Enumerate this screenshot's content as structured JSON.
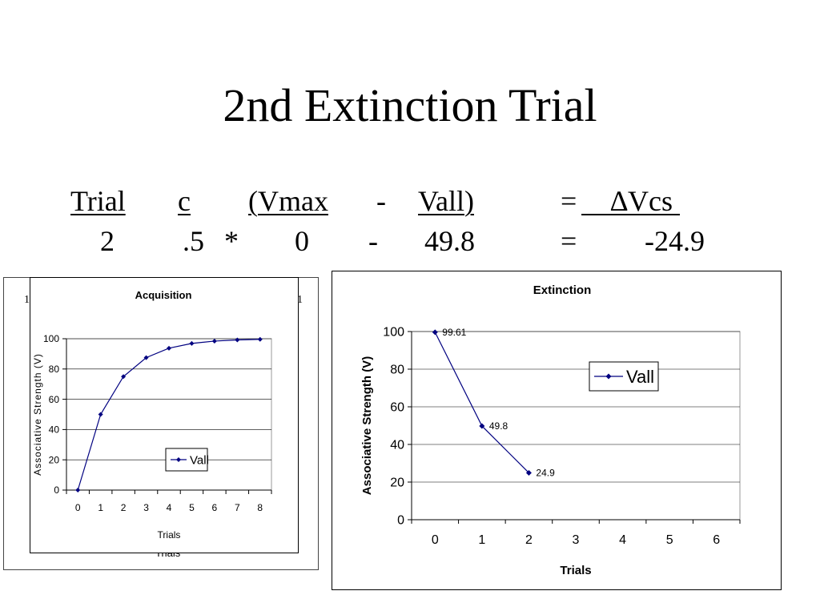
{
  "slide": {
    "title": "2nd Extinction Trial",
    "equation": {
      "headers": [
        "Trial",
        "c",
        "(Vmax",
        "-",
        "Vall)",
        "=",
        "∆Vcs"
      ],
      "values": [
        "2",
        ".5",
        "*",
        "0",
        "-",
        "49.8",
        "=",
        "-24.9"
      ]
    }
  },
  "background_chart": {
    "stub_left": "1",
    "stub_right": "1",
    "stub_bottom": "Trials"
  },
  "chart_data": [
    {
      "type": "line",
      "title": "Acquisition",
      "xlabel": "Trials",
      "ylabel": "Associative Strength (V)",
      "x": [
        0,
        1,
        2,
        3,
        4,
        5,
        6,
        7,
        8
      ],
      "series": [
        {
          "name": "Vall",
          "values": [
            0,
            50,
            75,
            87.5,
            93.75,
            96.88,
            98.44,
            99.22,
            99.61
          ]
        }
      ],
      "ylim": [
        0,
        100
      ],
      "yticks": [
        0,
        20,
        40,
        60,
        80,
        100
      ],
      "grid": "horizontal",
      "legend": "lower-right",
      "color": "#000080"
    },
    {
      "type": "line",
      "title": "Extinction",
      "xlabel": "Trials",
      "ylabel": "Associative Strength (V)",
      "x": [
        0,
        1,
        2
      ],
      "xticks": [
        0,
        1,
        2,
        3,
        4,
        5,
        6
      ],
      "series": [
        {
          "name": "Vall",
          "values": [
            99.61,
            49.8,
            24.9
          ]
        }
      ],
      "data_labels": [
        "99.61",
        "49.8",
        "24.9"
      ],
      "ylim": [
        0,
        100
      ],
      "yticks": [
        0,
        20,
        40,
        60,
        80,
        100
      ],
      "grid": "horizontal",
      "legend": "upper-right",
      "color": "#000080"
    }
  ]
}
